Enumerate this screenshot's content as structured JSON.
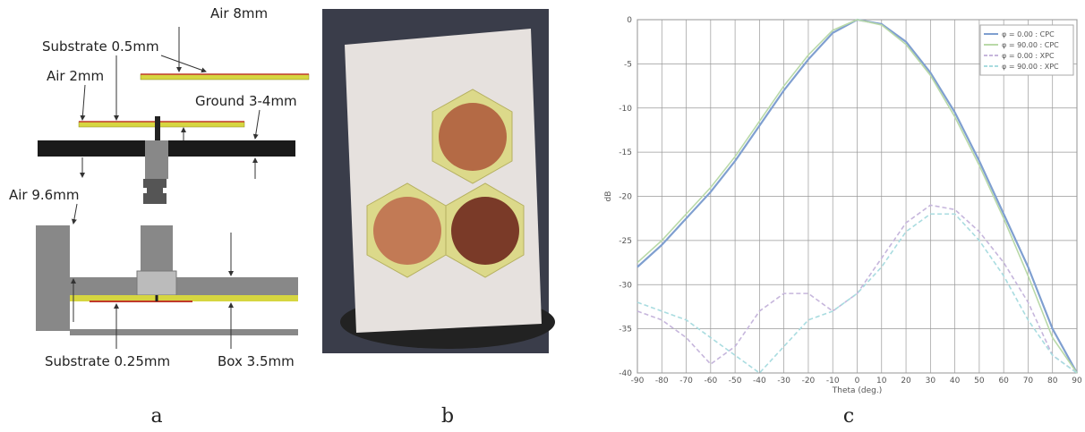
{
  "diagram": {
    "labels": [
      "Air 8mm",
      "Substrate 0.5mm",
      "Air 2mm",
      "Ground 3-4mm",
      "Air 9.6mm",
      "Substrate 0.25mm",
      "Box 3.5mm"
    ]
  },
  "panels": [
    "a",
    "b",
    "c"
  ],
  "chart_data": {
    "type": "line",
    "xlabel": "Theta (deg.)",
    "ylabel": "dB",
    "x": [
      -90,
      -80,
      -70,
      -60,
      -50,
      -40,
      -30,
      -20,
      -10,
      0,
      10,
      20,
      30,
      40,
      50,
      60,
      70,
      80,
      90
    ],
    "series": [
      {
        "name": "φ = 0.00 : CPC",
        "color": "#7f9fd0",
        "values": [
          -28,
          -25.5,
          -22.5,
          -19.5,
          -16,
          -12,
          -8,
          -4.5,
          -1.5,
          0,
          -0.5,
          -2.5,
          -6,
          -10.5,
          -16,
          -22,
          -28,
          -35,
          -40
        ]
      },
      {
        "name": "φ = 90.00 : CPC",
        "color": "#b9d9a8",
        "values": [
          -27.5,
          -25,
          -22,
          -19,
          -15.5,
          -11.5,
          -7.5,
          -4,
          -1.2,
          0,
          -0.6,
          -2.8,
          -6.3,
          -11,
          -16.5,
          -22.5,
          -29,
          -36,
          -40
        ]
      },
      {
        "name": "φ = 0.00 : XPC",
        "color": "#c6b6dc",
        "values": [
          -33,
          -34,
          -36,
          -39,
          -37,
          -33,
          -31,
          -31,
          -33,
          -31,
          -27,
          -23,
          -21,
          -21.5,
          -24,
          -27.5,
          -32,
          -38,
          -40
        ]
      },
      {
        "name": "φ = 90.00 : XPC",
        "color": "#a9dce0",
        "values": [
          -32,
          -33,
          -34,
          -36,
          -38,
          -40,
          -37,
          -34,
          -33,
          -31,
          -28,
          -24,
          -22,
          -22,
          -25,
          -29,
          -34,
          -38,
          -40
        ]
      }
    ],
    "xlim": [
      -90,
      90
    ],
    "ylim": [
      -40,
      0
    ],
    "xticks": [
      -90,
      -80,
      -70,
      -60,
      -50,
      -40,
      -30,
      -20,
      -10,
      0,
      10,
      20,
      30,
      40,
      50,
      60,
      70,
      80,
      90
    ],
    "yticks": [
      0,
      -5,
      -10,
      -15,
      -20,
      -25,
      -30,
      -35,
      -40
    ],
    "grid": true,
    "legend": "upper-right"
  }
}
